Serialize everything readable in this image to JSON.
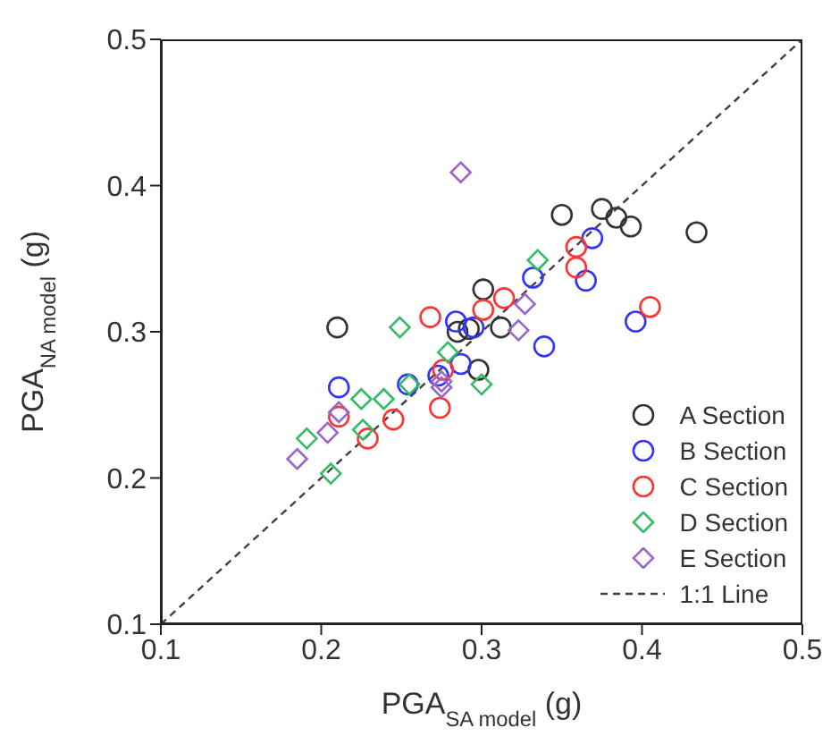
{
  "chart_data": {
    "type": "scatter",
    "xlabel": "PGA$_{SA model}$ (g)",
    "ylabel": "PGA$_{NA model}$ (g)",
    "xlim": [
      0.1,
      0.5
    ],
    "ylim": [
      0.1,
      0.5
    ],
    "xticks": [
      0.1,
      0.2,
      0.3,
      0.4,
      0.5
    ],
    "yticks": [
      0.1,
      0.2,
      0.3,
      0.4,
      0.5
    ],
    "legend": "bottom right",
    "series": [
      {
        "name": "A Section",
        "color": "#333333",
        "marker": "circle",
        "x": [
          0.21,
          0.301,
          0.312,
          0.298,
          0.35,
          0.285,
          0.292,
          0.375,
          0.384,
          0.393,
          0.434
        ],
        "values": [
          0.303,
          0.329,
          0.303,
          0.274,
          0.38,
          0.3,
          0.302,
          0.384,
          0.378,
          0.372,
          0.368
        ]
      },
      {
        "name": "B Section",
        "color": "#3333ff",
        "marker": "circle",
        "x": [
          0.369,
          0.332,
          0.365,
          0.339,
          0.396,
          0.284,
          0.295,
          0.287,
          0.273,
          0.211,
          0.254
        ],
        "values": [
          0.364,
          0.337,
          0.335,
          0.29,
          0.307,
          0.307,
          0.303,
          0.278,
          0.27,
          0.262,
          0.264
        ]
      },
      {
        "name": "C Section",
        "color": "#ff3333",
        "marker": "circle",
        "x": [
          0.359,
          0.359,
          0.314,
          0.301,
          0.268,
          0.405,
          0.276,
          0.211,
          0.245,
          0.229,
          0.274
        ],
        "values": [
          0.358,
          0.344,
          0.323,
          0.315,
          0.31,
          0.317,
          0.274,
          0.242,
          0.24,
          0.227,
          0.248
        ]
      },
      {
        "name": "D Section",
        "color": "#33bb66",
        "marker": "diamond",
        "x": [
          0.335,
          0.249,
          0.279,
          0.3,
          0.225,
          0.239,
          0.191,
          0.206,
          0.226,
          0.255
        ],
        "values": [
          0.349,
          0.303,
          0.286,
          0.264,
          0.254,
          0.254,
          0.227,
          0.203,
          0.233,
          0.264
        ]
      },
      {
        "name": "E Section",
        "color": "#9966cc",
        "marker": "diamond",
        "x": [
          0.287,
          0.327,
          0.323,
          0.275,
          0.185,
          0.204,
          0.211,
          0.275
        ],
        "values": [
          0.409,
          0.319,
          0.301,
          0.266,
          0.213,
          0.231,
          0.245,
          0.262
        ]
      },
      {
        "name": "1:1 Line",
        "type": "line",
        "color": "#404040",
        "line_style": "dashed",
        "marker": "none",
        "x": [
          0.1,
          0.5
        ],
        "values": [
          0.1,
          0.5
        ]
      }
    ]
  }
}
